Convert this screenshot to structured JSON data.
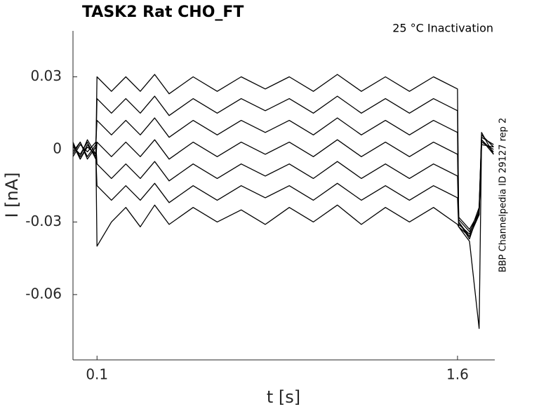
{
  "chart_data": {
    "type": "line",
    "title": "TASK2  Rat  CHO_FT",
    "annotation": "25 °C  Inactivation",
    "side_note": "BBP Channelpedia ID 29127 rep 2",
    "xlabel": "t [s]",
    "ylabel": "I [nA]",
    "xlim": [
      0,
      1.755
    ],
    "ylim": [
      -0.087,
      0.049
    ],
    "xticks": [
      0.1,
      1.6
    ],
    "yticks": [
      0.03,
      0,
      -0.03,
      -0.06
    ],
    "grid": false,
    "x": [
      0,
      0.03,
      0.06,
      0.095,
      0.1,
      0.16,
      0.22,
      0.28,
      0.34,
      0.4,
      0.5,
      0.6,
      0.7,
      0.8,
      0.9,
      1.0,
      1.1,
      1.2,
      1.3,
      1.4,
      1.5,
      1.6,
      1.605,
      1.65,
      1.69,
      1.7,
      1.75
    ],
    "series": [
      {
        "color": "#000000",
        "values": [
          0.003,
          -0.004,
          0.002,
          -0.003,
          0.03,
          0.024,
          0.03,
          0.024,
          0.031,
          0.023,
          0.03,
          0.024,
          0.03,
          0.025,
          0.03,
          0.024,
          0.031,
          0.024,
          0.03,
          0.024,
          0.03,
          0.025,
          -0.03,
          -0.036,
          -0.026,
          0.006,
          0.001
        ]
      },
      {
        "color": "#000000",
        "values": [
          0.002,
          -0.003,
          0.004,
          -0.002,
          0.021,
          0.015,
          0.021,
          0.015,
          0.022,
          0.014,
          0.021,
          0.015,
          0.021,
          0.016,
          0.021,
          0.015,
          0.022,
          0.015,
          0.021,
          0.015,
          0.021,
          0.016,
          -0.029,
          -0.034,
          -0.027,
          0.004,
          -0.001
        ]
      },
      {
        "color": "#000000",
        "values": [
          -0.002,
          0.003,
          -0.003,
          0.002,
          0.012,
          0.006,
          0.012,
          0.006,
          0.013,
          0.005,
          0.012,
          0.006,
          0.012,
          0.007,
          0.012,
          0.006,
          0.013,
          0.006,
          0.012,
          0.006,
          0.012,
          0.007,
          -0.031,
          -0.035,
          -0.024,
          0.005,
          0.002
        ]
      },
      {
        "color": "#000000",
        "values": [
          0.001,
          -0.002,
          0.003,
          -0.004,
          0.003,
          -0.003,
          0.003,
          -0.003,
          0.004,
          -0.004,
          0.003,
          -0.003,
          0.003,
          -0.002,
          0.003,
          -0.003,
          0.004,
          -0.003,
          0.003,
          -0.003,
          0.003,
          -0.002,
          -0.028,
          -0.033,
          -0.026,
          0.003,
          0.0
        ]
      },
      {
        "color": "#000000",
        "values": [
          -0.003,
          0.002,
          -0.001,
          0.003,
          -0.006,
          -0.012,
          -0.006,
          -0.012,
          -0.005,
          -0.013,
          -0.006,
          -0.012,
          -0.006,
          -0.011,
          -0.006,
          -0.012,
          -0.005,
          -0.012,
          -0.006,
          -0.012,
          -0.006,
          -0.011,
          -0.03,
          -0.037,
          -0.025,
          0.007,
          -0.002
        ]
      },
      {
        "color": "#000000",
        "values": [
          0.002,
          -0.004,
          0.001,
          -0.002,
          -0.015,
          -0.021,
          -0.015,
          -0.021,
          -0.014,
          -0.022,
          -0.015,
          -0.021,
          -0.015,
          -0.02,
          -0.015,
          -0.021,
          -0.014,
          -0.021,
          -0.015,
          -0.021,
          -0.015,
          -0.02,
          -0.032,
          -0.036,
          -0.027,
          0.002,
          0.001
        ]
      },
      {
        "color": "#000000",
        "values": [
          -0.001,
          0.003,
          -0.004,
          0.001,
          -0.04,
          -0.03,
          -0.024,
          -0.032,
          -0.023,
          -0.031,
          -0.024,
          -0.03,
          -0.025,
          -0.031,
          -0.024,
          -0.03,
          -0.023,
          -0.031,
          -0.024,
          -0.03,
          -0.024,
          -0.031,
          -0.032,
          -0.038,
          -0.074,
          0.004,
          -0.002
        ]
      }
    ]
  }
}
